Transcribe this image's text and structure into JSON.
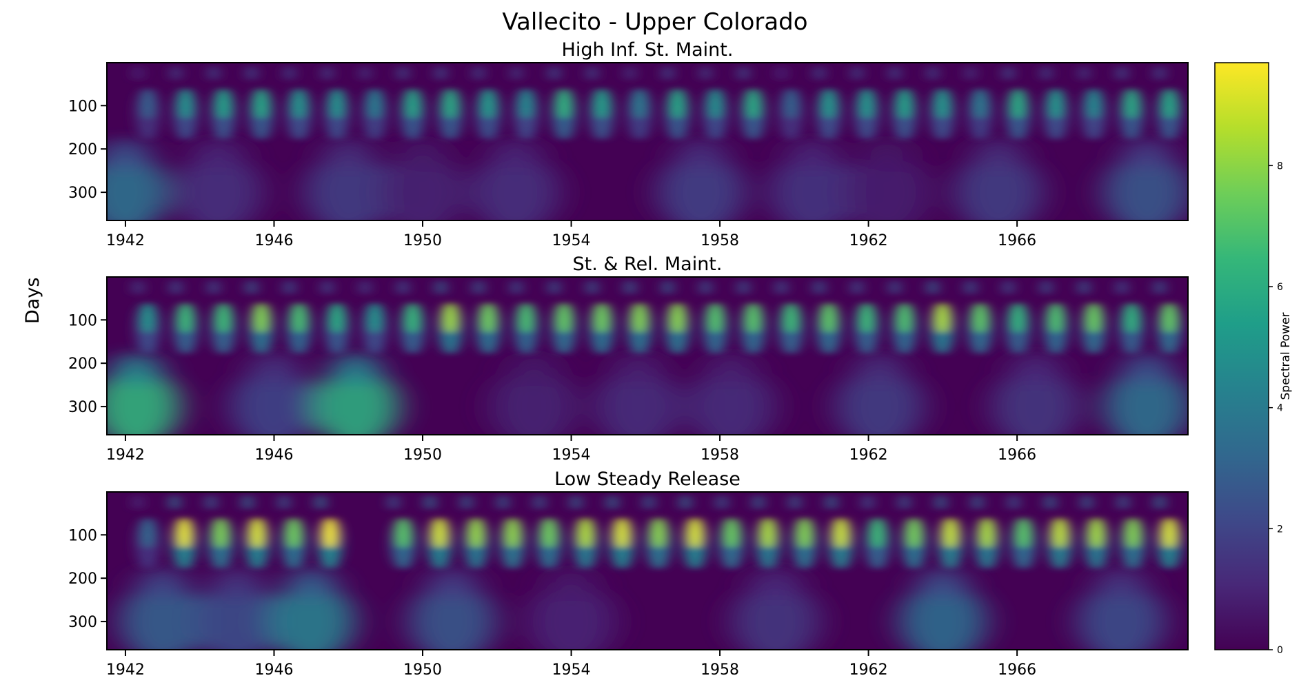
{
  "figure": {
    "title": "Vallecito - Upper Colorado",
    "ylabel": "Days"
  },
  "colors": {
    "viridis": [
      "#440154",
      "#482878",
      "#3e4989",
      "#31688e",
      "#26828e",
      "#1f9e89",
      "#35b779",
      "#6ece58",
      "#b5de2b",
      "#fde725"
    ],
    "frame": "#000000"
  },
  "chart_data": [
    {
      "type": "heatmap",
      "title": "High Inf. St. Maint.",
      "xlabel": "",
      "ylabel": "Days",
      "xlim": [
        1941.5,
        1970.6
      ],
      "ylim": [
        365,
        1
      ],
      "x_ticks": [
        1942,
        1946,
        1950,
        1954,
        1958,
        1962,
        1966
      ],
      "y_ticks": [
        100,
        200,
        300
      ],
      "annual_peak_power": [
        3.0,
        5.0,
        5.6,
        5.8,
        5.1,
        5.0,
        4.1,
        5.7,
        5.9,
        5.3,
        4.6,
        6.3,
        5.5,
        4.0,
        5.8,
        4.9,
        6.0,
        3.1,
        5.2,
        5.2,
        5.6,
        5.2,
        4.0,
        6.0,
        5.2,
        4.6,
        5.9,
        5.8
      ],
      "low_frequency_power": [
        {
          "x": 1942.0,
          "power": 3.6
        },
        {
          "x": 1944.5,
          "power": 1.4
        },
        {
          "x": 1948.0,
          "power": 1.8
        },
        {
          "x": 1950.0,
          "power": 0.9
        },
        {
          "x": 1952.5,
          "power": 1.4
        },
        {
          "x": 1957.5,
          "power": 1.9
        },
        {
          "x": 1960.5,
          "power": 1.5
        },
        {
          "x": 1962.5,
          "power": 0.8
        },
        {
          "x": 1965.5,
          "power": 1.8
        },
        {
          "x": 1969.5,
          "power": 2.6
        }
      ]
    },
    {
      "type": "heatmap",
      "title": "St. & Rel. Maint.",
      "xlabel": "",
      "ylabel": "",
      "xlim": [
        1941.5,
        1970.6
      ],
      "ylim": [
        365,
        1
      ],
      "x_ticks": [
        1942,
        1946,
        1950,
        1954,
        1958,
        1962,
        1966
      ],
      "y_ticks": [
        100,
        200,
        300
      ],
      "annual_peak_power": [
        5.0,
        6.6,
        6.7,
        7.9,
        6.9,
        6.0,
        5.0,
        6.5,
        8.3,
        7.6,
        6.9,
        7.4,
        7.6,
        7.9,
        8.0,
        7.1,
        7.2,
        6.7,
        7.3,
        6.6,
        7.0,
        8.5,
        7.3,
        6.4,
        7.0,
        7.5,
        6.3,
        7.4
      ],
      "low_frequency_power": [
        {
          "x": 1942.3,
          "power": 6.3
        },
        {
          "x": 1946.0,
          "power": 2.0
        },
        {
          "x": 1948.2,
          "power": 6.0
        },
        {
          "x": 1953.0,
          "power": 0.9
        },
        {
          "x": 1955.8,
          "power": 1.2
        },
        {
          "x": 1958.3,
          "power": 1.2
        },
        {
          "x": 1962.3,
          "power": 1.8
        },
        {
          "x": 1966.5,
          "power": 1.6
        },
        {
          "x": 1969.5,
          "power": 3.6
        }
      ]
    },
    {
      "type": "heatmap",
      "title": "Low Steady Release",
      "xlabel": "",
      "ylabel": "",
      "xlim": [
        1941.5,
        1970.6
      ],
      "ylim": [
        365,
        1
      ],
      "x_ticks": [
        1942,
        1946,
        1950,
        1954,
        1958,
        1962,
        1966
      ],
      "y_ticks": [
        100,
        200,
        300
      ],
      "annual_peak_power": [
        3.2,
        9.4,
        7.8,
        9.2,
        7.6,
        9.6,
        0.0,
        7.2,
        9.1,
        8.2,
        8.1,
        7.6,
        8.6,
        9.2,
        8.0,
        9.2,
        7.5,
        8.5,
        7.9,
        9.0,
        6.6,
        7.7,
        8.9,
        8.5,
        7.2,
        8.8,
        8.4,
        7.9,
        9.2
      ],
      "low_frequency_power": [
        {
          "x": 1943.0,
          "power": 3.0
        },
        {
          "x": 1945.0,
          "power": 2.3
        },
        {
          "x": 1947.0,
          "power": 4.2
        },
        {
          "x": 1950.8,
          "power": 2.6
        },
        {
          "x": 1954.0,
          "power": 1.0
        },
        {
          "x": 1959.5,
          "power": 1.6
        },
        {
          "x": 1964.0,
          "power": 3.4
        },
        {
          "x": 1968.8,
          "power": 2.3
        }
      ]
    }
  ],
  "colorbar": {
    "label": "Spectral Power",
    "vmin": 0,
    "vmax": 9.7,
    "ticks": [
      "0",
      "2",
      "4",
      "6",
      "8"
    ]
  }
}
